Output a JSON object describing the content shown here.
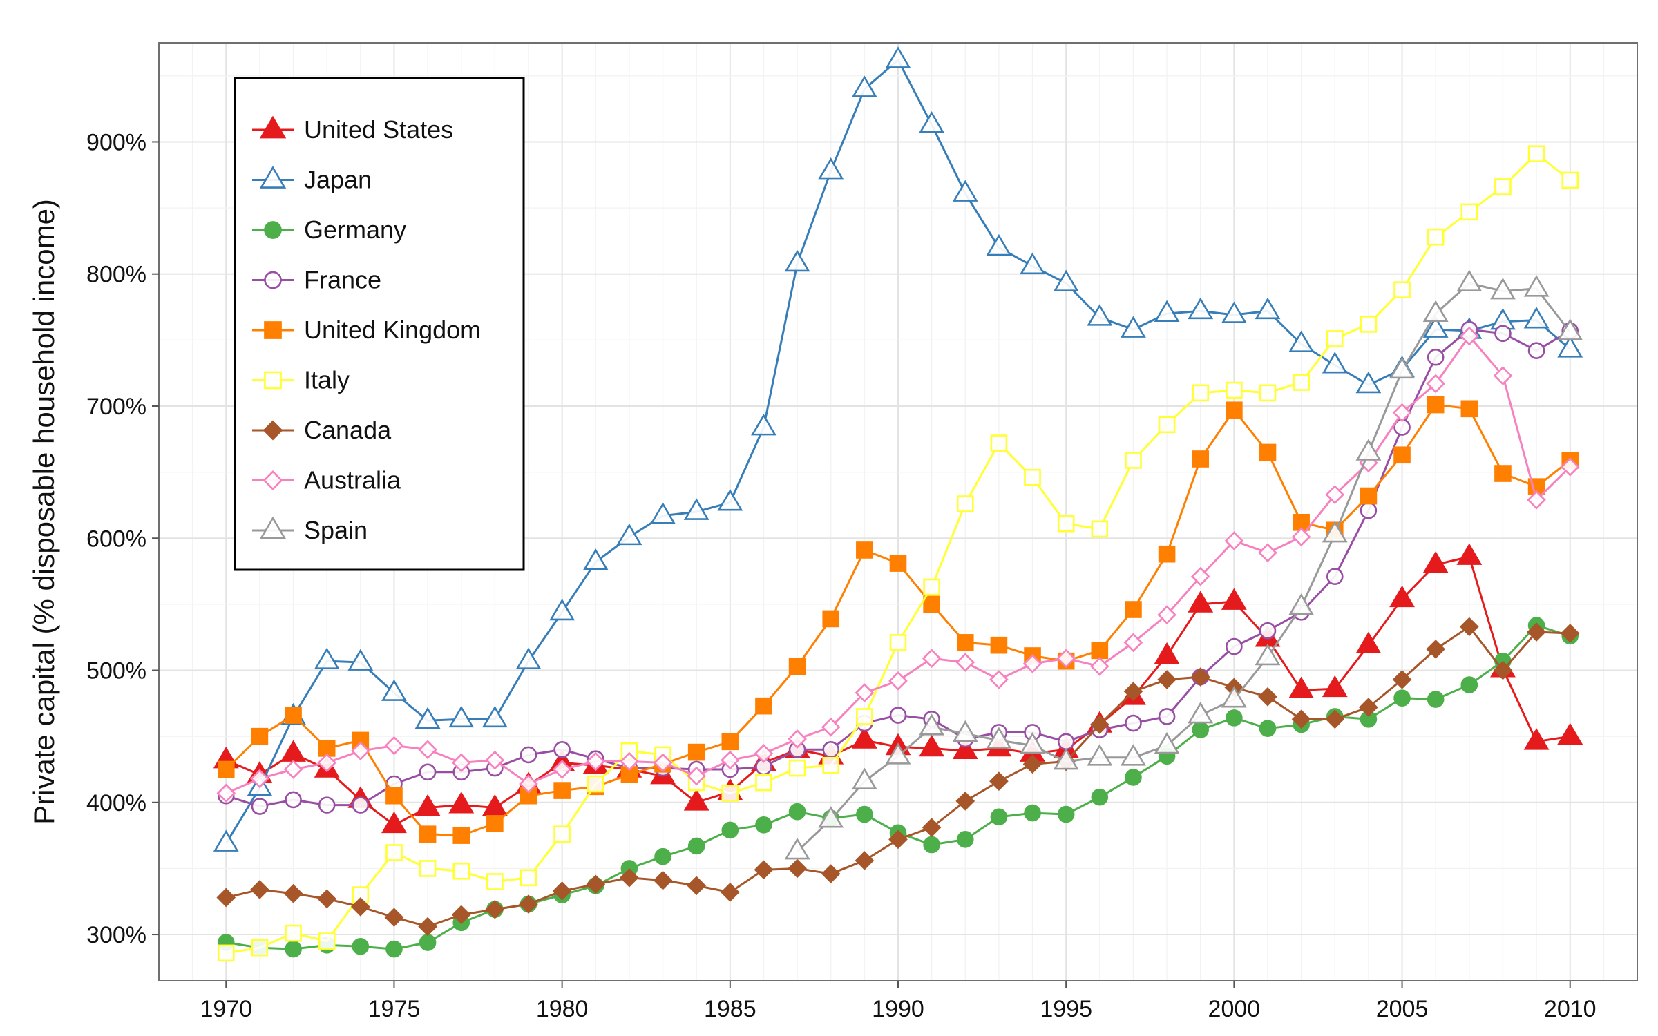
{
  "chart_data": {
    "type": "line",
    "title": "",
    "xlabel": "",
    "ylabel": "Private capital (% disposable household income)",
    "x": [
      1970,
      1971,
      1972,
      1973,
      1974,
      1975,
      1976,
      1977,
      1978,
      1979,
      1980,
      1981,
      1982,
      1983,
      1984,
      1985,
      1986,
      1987,
      1988,
      1989,
      1990,
      1991,
      1992,
      1993,
      1994,
      1995,
      1996,
      1997,
      1998,
      1999,
      2000,
      2001,
      2002,
      2003,
      2004,
      2005,
      2006,
      2007,
      2008,
      2009,
      2010
    ],
    "xlim": [
      1968,
      2012
    ],
    "ylim": [
      265,
      975
    ],
    "xticks": [
      1970,
      1975,
      1980,
      1985,
      1990,
      1995,
      2000,
      2005,
      2010
    ],
    "xtick_labels": [
      "1970",
      "1975",
      "1980",
      "1985",
      "1990",
      "1995",
      "2000",
      "2005",
      "2010"
    ],
    "yticks": [
      300,
      400,
      500,
      600,
      700,
      800,
      900
    ],
    "ytick_labels": [
      "300%",
      "400%",
      "500%",
      "600%",
      "700%",
      "800%",
      "900%"
    ],
    "grid": true,
    "legend_position": "top-left",
    "series": [
      {
        "name": "United States",
        "color": "#e41a1c",
        "marker": "triangle-filled",
        "values": [
          432,
          421,
          437,
          425,
          402,
          383,
          396,
          398,
          396,
          413,
          430,
          428,
          425,
          420,
          400,
          408,
          430,
          440,
          435,
          447,
          442,
          441,
          439,
          441,
          437,
          440,
          459,
          480,
          511,
          550,
          552,
          524,
          485,
          486,
          519,
          554,
          580,
          586,
          501,
          446,
          450
        ]
      },
      {
        "name": "Japan",
        "color": "#377eb8",
        "marker": "triangle-open",
        "values": [
          369,
          411,
          465,
          507,
          506,
          483,
          462,
          463,
          463,
          507,
          544,
          582,
          601,
          617,
          620,
          627,
          684,
          808,
          878,
          940,
          962,
          913,
          861,
          820,
          806,
          793,
          767,
          758,
          770,
          772,
          769,
          772,
          747,
          731,
          716,
          728,
          758,
          757,
          764,
          765,
          743
        ]
      },
      {
        "name": "Germany",
        "color": "#4daf4a",
        "marker": "circle-filled",
        "values": [
          294,
          290,
          289,
          292,
          291,
          289,
          294,
          309,
          319,
          323,
          330,
          337,
          350,
          359,
          367,
          379,
          383,
          393,
          388,
          391,
          377,
          368,
          372,
          389,
          392,
          391,
          404,
          419,
          435,
          455,
          464,
          456,
          459,
          465,
          463,
          479,
          478,
          489,
          507,
          534,
          526
        ]
      },
      {
        "name": "France",
        "color": "#984ea3",
        "marker": "circle-open",
        "values": [
          405,
          397,
          402,
          398,
          398,
          414,
          423,
          423,
          426,
          436,
          440,
          433,
          426,
          426,
          425,
          425,
          427,
          440,
          440,
          460,
          466,
          463,
          448,
          453,
          453,
          446,
          455,
          460,
          465,
          495,
          518,
          530,
          544,
          571,
          621,
          684,
          737,
          758,
          755,
          742,
          757
        ]
      },
      {
        "name": "United Kingdom",
        "color": "#ff7f00",
        "marker": "square-filled",
        "values": [
          425,
          450,
          466,
          441,
          447,
          405,
          376,
          375,
          384,
          405,
          409,
          412,
          421,
          429,
          438,
          446,
          473,
          503,
          539,
          591,
          581,
          550,
          521,
          519,
          511,
          507,
          515,
          546,
          588,
          660,
          697,
          665,
          612,
          606,
          632,
          663,
          701,
          698,
          649,
          639,
          659
        ]
      },
      {
        "name": "Italy",
        "color": "#ffff33",
        "marker": "square-open",
        "values": [
          286,
          290,
          301,
          295,
          330,
          362,
          350,
          348,
          340,
          343,
          376,
          414,
          439,
          436,
          415,
          407,
          415,
          426,
          428,
          465,
          521,
          563,
          626,
          672,
          646,
          611,
          607,
          659,
          686,
          710,
          712,
          710,
          718,
          751,
          762,
          788,
          828,
          847,
          866,
          891,
          871
        ]
      },
      {
        "name": "Canada",
        "color": "#a65628",
        "marker": "diamond-filled",
        "values": [
          328,
          334,
          331,
          327,
          321,
          313,
          306,
          315,
          319,
          323,
          333,
          338,
          343,
          341,
          337,
          332,
          349,
          350,
          346,
          356,
          372,
          381,
          401,
          416,
          429,
          431,
          459,
          484,
          493,
          495,
          487,
          480,
          463,
          463,
          472,
          493,
          516,
          533,
          500,
          529,
          528
        ]
      },
      {
        "name": "Australia",
        "color": "#f781bf",
        "marker": "diamond-open",
        "values": [
          407,
          418,
          425,
          430,
          439,
          443,
          440,
          430,
          432,
          414,
          425,
          431,
          431,
          430,
          420,
          432,
          437,
          448,
          457,
          483,
          492,
          509,
          506,
          493,
          505,
          509,
          503,
          521,
          542,
          571,
          598,
          589,
          601,
          633,
          657,
          695,
          717,
          753,
          723,
          629,
          654
        ]
      },
      {
        "name": "Spain",
        "color": "#999999",
        "marker": "triangle-open",
        "values": [
          null,
          null,
          null,
          null,
          null,
          null,
          null,
          null,
          null,
          null,
          null,
          null,
          null,
          null,
          null,
          null,
          null,
          363,
          387,
          416,
          435,
          457,
          452,
          447,
          443,
          431,
          434,
          434,
          443,
          466,
          478,
          510,
          548,
          603,
          665,
          727,
          770,
          793,
          787,
          789,
          756
        ]
      }
    ]
  }
}
